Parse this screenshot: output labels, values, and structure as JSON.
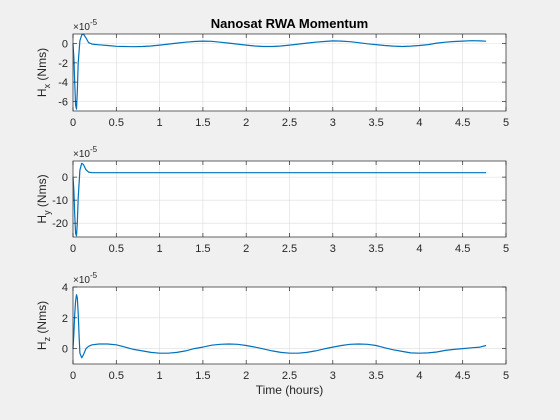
{
  "chart_data": [
    {
      "type": "line",
      "title": "Nanosat RWA Momentum",
      "ylabel_main": "H",
      "ylabel_sub": "x",
      "ylabel_unit": " (Nms)",
      "xlabel": "",
      "xlim": [
        0,
        5
      ],
      "ylim": [
        -7,
        1
      ],
      "yticks": [
        -6,
        -4,
        -2,
        0
      ],
      "ytick_labels": [
        "-6",
        "-4",
        "-2",
        "0"
      ],
      "xticks": [
        0,
        0.5,
        1,
        1.5,
        2,
        2.5,
        3,
        3.5,
        4,
        4.5,
        5
      ],
      "xtick_labels": [
        "0",
        "0.5",
        "1",
        "1.5",
        "2",
        "2.5",
        "3",
        "3.5",
        "4",
        "4.5",
        "5"
      ],
      "exponent_base": "×10",
      "exponent_power": "-5",
      "grid": true,
      "series": [
        {
          "x": [
            0,
            0.01,
            0.02,
            0.03,
            0.04,
            0.05,
            0.06,
            0.08,
            0.1,
            0.12,
            0.15,
            0.18,
            0.22,
            0.3,
            0.4,
            0.5,
            0.6,
            0.7,
            0.8,
            0.9,
            1.0,
            1.1,
            1.2,
            1.3,
            1.4,
            1.5,
            1.6,
            1.7,
            1.8,
            1.9,
            2.0,
            2.1,
            2.2,
            2.3,
            2.4,
            2.5,
            2.6,
            2.7,
            2.8,
            2.9,
            3.0,
            3.1,
            3.2,
            3.3,
            3.4,
            3.5,
            3.6,
            3.7,
            3.8,
            3.9,
            4.0,
            4.1,
            4.2,
            4.3,
            4.4,
            4.5,
            4.6,
            4.7,
            4.77
          ],
          "values": [
            0,
            -1.5,
            -4.0,
            -6.4,
            -6.8,
            -5.0,
            -2.0,
            0.3,
            0.9,
            1.0,
            0.6,
            0.1,
            -0.05,
            -0.12,
            -0.2,
            -0.28,
            -0.3,
            -0.32,
            -0.3,
            -0.25,
            -0.15,
            -0.05,
            0.05,
            0.15,
            0.22,
            0.26,
            0.24,
            0.15,
            0.05,
            -0.05,
            -0.15,
            -0.25,
            -0.3,
            -0.3,
            -0.25,
            -0.15,
            -0.05,
            0.05,
            0.15,
            0.22,
            0.28,
            0.26,
            0.2,
            0.1,
            -0.02,
            -0.1,
            -0.2,
            -0.26,
            -0.3,
            -0.26,
            -0.2,
            -0.1,
            0.05,
            0.15,
            0.22,
            0.26,
            0.3,
            0.28,
            0.25
          ]
        }
      ]
    },
    {
      "type": "line",
      "title": "",
      "ylabel_main": "H",
      "ylabel_sub": "y",
      "ylabel_unit": " (Nms)",
      "xlabel": "",
      "xlim": [
        0,
        5
      ],
      "ylim": [
        -26,
        7
      ],
      "yticks": [
        -20,
        -10,
        0
      ],
      "ytick_labels": [
        "-20",
        "-10",
        "0"
      ],
      "xticks": [
        0,
        0.5,
        1,
        1.5,
        2,
        2.5,
        3,
        3.5,
        4,
        4.5,
        5
      ],
      "xtick_labels": [
        "0",
        "0.5",
        "1",
        "1.5",
        "2",
        "2.5",
        "3",
        "3.5",
        "4",
        "4.5",
        "5"
      ],
      "exponent_base": "×10",
      "exponent_power": "-5",
      "grid": true,
      "series": [
        {
          "x": [
            0,
            0.01,
            0.02,
            0.03,
            0.04,
            0.05,
            0.06,
            0.08,
            0.1,
            0.12,
            0.15,
            0.18,
            0.22,
            0.3,
            0.5,
            1.0,
            1.5,
            2.0,
            2.5,
            3.0,
            3.5,
            4.0,
            4.5,
            4.77
          ],
          "values": [
            0,
            -6.0,
            -16.0,
            -24.5,
            -25.5,
            -20.0,
            -9.0,
            3.0,
            6.0,
            5.5,
            3.2,
            2.2,
            1.9,
            1.9,
            1.9,
            1.9,
            1.9,
            1.9,
            1.9,
            1.9,
            1.9,
            1.9,
            1.9,
            1.9
          ]
        }
      ]
    },
    {
      "type": "line",
      "title": "",
      "ylabel_main": "H",
      "ylabel_sub": "z",
      "ylabel_unit": " (Nms)",
      "xlabel": "Time (hours)",
      "xlim": [
        0,
        5
      ],
      "ylim": [
        -1,
        4
      ],
      "yticks": [
        0,
        2,
        4
      ],
      "ytick_labels": [
        "0",
        "2",
        "4"
      ],
      "xticks": [
        0,
        0.5,
        1,
        1.5,
        2,
        2.5,
        3,
        3.5,
        4,
        4.5,
        5
      ],
      "xtick_labels": [
        "0",
        "0.5",
        "1",
        "1.5",
        "2",
        "2.5",
        "3",
        "3.5",
        "4",
        "4.5",
        "5"
      ],
      "exponent_base": "×10",
      "exponent_power": "-5",
      "grid": true,
      "series": [
        {
          "x": [
            0,
            0.01,
            0.02,
            0.03,
            0.04,
            0.05,
            0.06,
            0.07,
            0.08,
            0.1,
            0.12,
            0.15,
            0.18,
            0.22,
            0.3,
            0.4,
            0.5,
            0.6,
            0.7,
            0.8,
            0.9,
            1.0,
            1.1,
            1.2,
            1.3,
            1.4,
            1.5,
            1.6,
            1.7,
            1.8,
            1.9,
            2.0,
            2.1,
            2.2,
            2.3,
            2.4,
            2.5,
            2.6,
            2.7,
            2.8,
            2.9,
            3.0,
            3.1,
            3.2,
            3.3,
            3.4,
            3.5,
            3.6,
            3.7,
            3.8,
            3.9,
            4.0,
            4.1,
            4.2,
            4.3,
            4.4,
            4.5,
            4.6,
            4.7,
            4.77
          ],
          "values": [
            0,
            1.0,
            2.2,
            3.1,
            3.5,
            3.3,
            2.3,
            0.8,
            -0.3,
            -0.6,
            -0.4,
            0.0,
            0.15,
            0.25,
            0.3,
            0.3,
            0.25,
            0.1,
            -0.05,
            -0.15,
            -0.25,
            -0.3,
            -0.3,
            -0.25,
            -0.15,
            0.0,
            0.1,
            0.22,
            0.28,
            0.3,
            0.28,
            0.2,
            0.1,
            -0.02,
            -0.15,
            -0.25,
            -0.3,
            -0.3,
            -0.25,
            -0.15,
            -0.02,
            0.1,
            0.2,
            0.28,
            0.3,
            0.28,
            0.2,
            0.05,
            -0.08,
            -0.18,
            -0.28,
            -0.3,
            -0.28,
            -0.22,
            -0.12,
            -0.05,
            0.0,
            0.05,
            0.1,
            0.2
          ]
        }
      ]
    }
  ]
}
